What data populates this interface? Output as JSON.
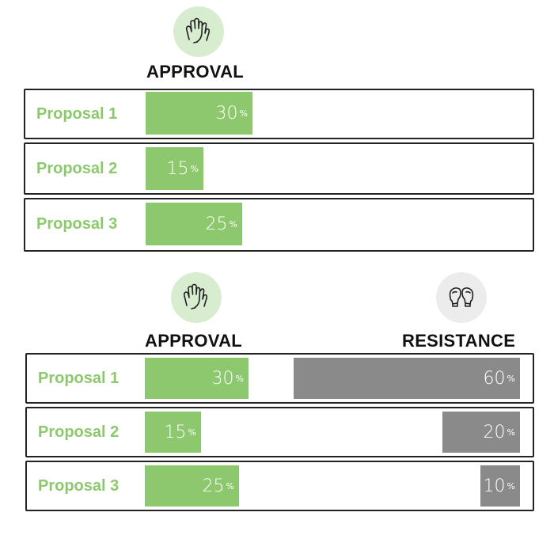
{
  "colors": {
    "approval": "#8dc86f",
    "resistance": "#8a8a8a",
    "label": "#8dc86f",
    "icon_bg_green": "#d8ecd0",
    "icon_bg_gray": "#ececec"
  },
  "icons": {
    "approval": "high-five-hands-icon",
    "resistance": "boxing-gloves-icon"
  },
  "chart_data": [
    {
      "type": "bar",
      "orientation": "horizontal",
      "categories": [
        "Proposal 1",
        "Proposal 2",
        "Proposal 3"
      ],
      "series": [
        {
          "name": "APPROVAL",
          "values": [
            30,
            15,
            25
          ],
          "labels": [
            "30",
            "15",
            "25"
          ],
          "unit": "%"
        }
      ]
    },
    {
      "type": "bar",
      "orientation": "horizontal",
      "categories": [
        "Proposal 1",
        "Proposal 2",
        "Proposal 3"
      ],
      "series": [
        {
          "name": "APPROVAL",
          "values": [
            30,
            15,
            25
          ],
          "labels": [
            "30",
            "15",
            "25"
          ],
          "unit": "%"
        },
        {
          "name": "RESISTANCE",
          "values": [
            60,
            20,
            10
          ],
          "labels": [
            "60",
            "20",
            "10"
          ],
          "unit": "%"
        }
      ]
    }
  ]
}
